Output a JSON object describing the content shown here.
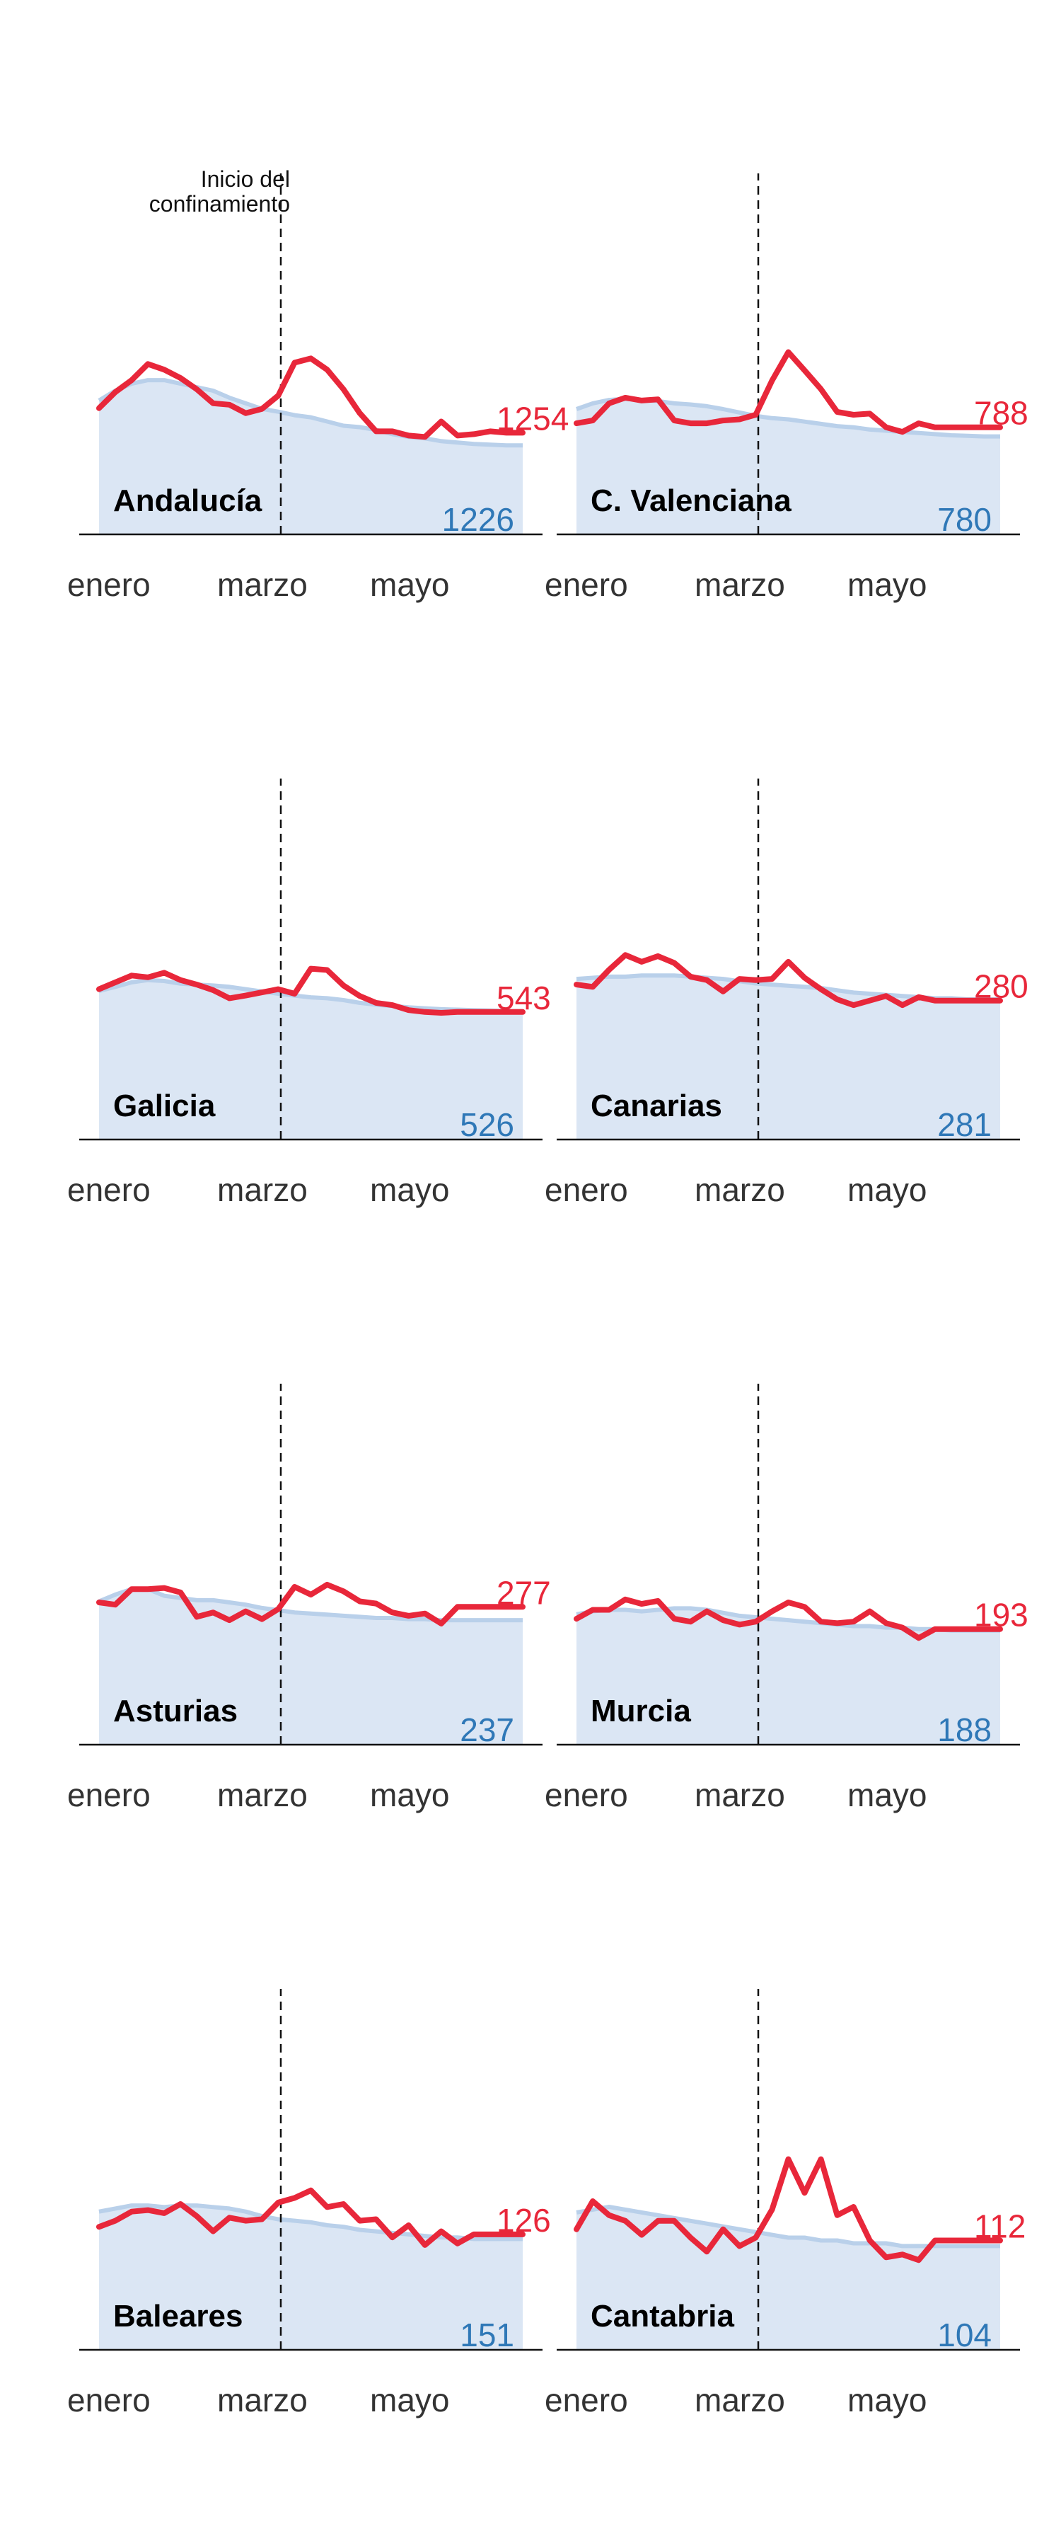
{
  "lockdown_annotation": [
    "Inicio del",
    "confinamiento"
  ],
  "colors": {
    "observed": "#e8273a",
    "expected_line": "#b9d0ea",
    "expected_fill": "#dbe6f4",
    "expected_label": "#2f78b7",
    "axis": "#111111",
    "tick_text": "#333333"
  },
  "chart_data": [
    {
      "type": "area",
      "title": "Andalucía",
      "x_ticks": [
        "enero",
        "marzo",
        "mayo"
      ],
      "lockdown_week": 10,
      "series": [
        {
          "name": "",
          "values": [
            1226,
            1240,
            1250,
            1255,
            1255,
            1250,
            1245,
            1240,
            1230,
            1222,
            1214,
            1210,
            1205,
            1202,
            1196,
            1190,
            1188,
            1184,
            1178,
            1174,
            1172,
            1168,
            1166,
            1164,
            1163,
            1162,
            1162
          ],
          "end_label": "1226"
        },
        {
          "name": "",
          "values": [
            1215,
            1238,
            1255,
            1278,
            1270,
            1258,
            1242,
            1222,
            1220,
            1208,
            1214,
            1233,
            1280,
            1286,
            1270,
            1242,
            1208,
            1182,
            1182,
            1176,
            1174,
            1196,
            1176,
            1178,
            1182,
            1180,
            1180
          ],
          "end_label": "1254"
        }
      ],
      "ylim": [
        1035,
        1555
      ]
    },
    {
      "type": "area",
      "title": "C. Valenciana",
      "x_ticks": [
        "enero",
        "marzo",
        "mayo"
      ],
      "lockdown_week": 10,
      "series": [
        {
          "name": "",
          "values": [
            780,
            790,
            796,
            798,
            796,
            794,
            790,
            788,
            785,
            780,
            774,
            768,
            764,
            762,
            758,
            754,
            750,
            748,
            744,
            742,
            740,
            738,
            736,
            734,
            733,
            732,
            732
          ],
          "end_label": "780"
        },
        {
          "name": "",
          "values": [
            755,
            760,
            790,
            800,
            795,
            797,
            760,
            755,
            755,
            760,
            762,
            770,
            830,
            880,
            848,
            815,
            775,
            770,
            772,
            748,
            740,
            755,
            748,
            748,
            748,
            748,
            748
          ],
          "end_label": "788"
        }
      ],
      "ylim": [
        560,
        1200
      ]
    },
    {
      "type": "area",
      "title": "Galicia",
      "x_ticks": [
        "enero",
        "marzo",
        "mayo"
      ],
      "lockdown_week": 10,
      "series": [
        {
          "name": "",
          "values": [
            526,
            535,
            545,
            550,
            548,
            542,
            540,
            538,
            535,
            530,
            525,
            520,
            516,
            512,
            510,
            506,
            500,
            496,
            493,
            490,
            488,
            486,
            485,
            484,
            483,
            482,
            482
          ],
          "end_label": "526"
        },
        {
          "name": "",
          "values": [
            530,
            545,
            560,
            556,
            566,
            550,
            540,
            528,
            510,
            516,
            523,
            530,
            520,
            575,
            572,
            538,
            515,
            500,
            495,
            484,
            480,
            478,
            480,
            480,
            480,
            480,
            480
          ],
          "end_label": "543"
        }
      ],
      "ylim": [
        200,
        1000
      ]
    },
    {
      "type": "area",
      "title": "Canarias",
      "x_ticks": [
        "enero",
        "marzo",
        "mayo"
      ],
      "lockdown_week": 10,
      "series": [
        {
          "name": "",
          "values": [
            281,
            282,
            283,
            283,
            284,
            284,
            284,
            283,
            282,
            281,
            279,
            277,
            276,
            275,
            274,
            273,
            271,
            269,
            268,
            267,
            266,
            265,
            264,
            264,
            263,
            263,
            263
          ],
          "end_label": "281"
        },
        {
          "name": "",
          "values": [
            276,
            274,
            289,
            302,
            296,
            301,
            295,
            283,
            280,
            270,
            281,
            280,
            281,
            296,
            282,
            272,
            263,
            258,
            262,
            266,
            258,
            265,
            262,
            262,
            262,
            262,
            262
          ],
          "end_label": "280"
        }
      ],
      "ylim": [
        140,
        460
      ]
    },
    {
      "type": "area",
      "title": "Asturias",
      "x_ticks": [
        "enero",
        "marzo",
        "mayo"
      ],
      "lockdown_week": 10,
      "series": [
        {
          "name": "",
          "values": [
            237,
            243,
            248,
            248,
            242,
            240,
            238,
            238,
            236,
            234,
            231,
            229,
            227,
            226,
            225,
            224,
            223,
            222,
            222,
            221,
            221,
            220,
            220,
            220,
            220,
            220,
            220
          ],
          "end_label": "237"
        },
        {
          "name": "",
          "values": [
            236,
            234,
            248,
            248,
            249,
            245,
            223,
            227,
            220,
            228,
            221,
            230,
            250,
            243,
            252,
            246,
            237,
            235,
            227,
            224,
            226,
            217,
            232,
            232,
            232,
            232,
            232
          ],
          "end_label": "277"
        }
      ],
      "ylim": [
        108,
        436
      ]
    },
    {
      "type": "area",
      "title": "Murcia",
      "x_ticks": [
        "enero",
        "marzo",
        "mayo"
      ],
      "lockdown_week": 10,
      "series": [
        {
          "name": "",
          "values": [
            188,
            190,
            191,
            191,
            190,
            191,
            192,
            192,
            191,
            189,
            187,
            186,
            185,
            184,
            183,
            182,
            181,
            180,
            180,
            179,
            179,
            178,
            178,
            177,
            177,
            177,
            177
          ],
          "end_label": "188"
        },
        {
          "name": "",
          "values": [
            185,
            191,
            191,
            198,
            195,
            197,
            185,
            183,
            190,
            184,
            181,
            183,
            190,
            196,
            193,
            183,
            182,
            183,
            190,
            182,
            179,
            172,
            178,
            178,
            178,
            178,
            178
          ],
          "end_label": "193"
        }
      ],
      "ylim": [
        100,
        346
      ]
    },
    {
      "type": "area",
      "title": "Baleares",
      "x_ticks": [
        "enero",
        "marzo",
        "mayo"
      ],
      "lockdown_week": 10,
      "series": [
        {
          "name": "",
          "values": [
            151,
            153,
            155,
            155,
            154,
            155,
            155,
            154,
            153,
            151,
            148,
            146,
            145,
            144,
            142,
            141,
            139,
            138,
            137,
            136,
            135,
            134,
            134,
            133,
            133,
            133,
            133
          ],
          "end_label": "151"
        },
        {
          "name": "",
          "values": [
            141,
            145,
            151,
            152,
            150,
            156,
            148,
            138,
            147,
            145,
            146,
            157,
            160,
            165,
            154,
            156,
            145,
            146,
            134,
            142,
            129,
            138,
            130,
            136,
            136,
            136,
            136
          ],
          "end_label": "126"
        }
      ],
      "ylim": [
        60,
        300
      ]
    },
    {
      "type": "area",
      "title": "Cantabria",
      "x_ticks": [
        "enero",
        "marzo",
        "mayo"
      ],
      "lockdown_week": 10,
      "series": [
        {
          "name": "",
          "values": [
            104,
            105,
            106,
            105,
            104,
            103,
            102,
            101,
            100,
            99,
            98,
            97,
            96,
            95,
            95,
            94,
            94,
            93,
            93,
            93,
            92,
            92,
            92,
            92,
            92,
            92,
            92
          ],
          "end_label": "104"
        },
        {
          "name": "",
          "values": [
            98,
            108,
            103,
            101,
            96,
            101,
            101,
            95,
            90,
            98,
            92,
            95,
            105,
            123,
            111,
            123,
            103,
            106,
            94,
            88,
            89,
            87,
            94,
            94,
            94,
            94,
            94
          ],
          "end_label": "112"
        }
      ],
      "ylim": [
        55,
        185
      ]
    }
  ]
}
